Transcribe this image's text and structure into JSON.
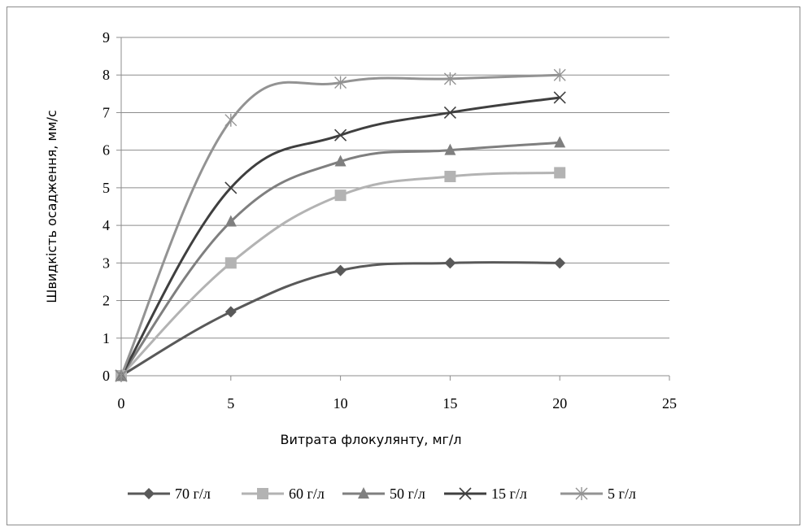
{
  "chart_data": {
    "type": "line",
    "xlabel": "Витрата флокулянту, мг/л",
    "ylabel": "Швидкість осадження, мм/с",
    "xlim": [
      0,
      25
    ],
    "ylim": [
      0,
      9
    ],
    "x_ticks": [
      0,
      5,
      10,
      15,
      20,
      25
    ],
    "y_ticks": [
      0,
      1,
      2,
      3,
      4,
      5,
      6,
      7,
      8,
      9
    ],
    "grid": "horizontal",
    "legend_position": "bottom",
    "x": [
      0,
      5,
      10,
      15,
      20
    ],
    "series": [
      {
        "name": "70 г/л",
        "values": [
          0,
          1.7,
          2.8,
          3.0,
          3.0
        ],
        "color": "#595959",
        "marker": "diamond"
      },
      {
        "name": "60 г/л",
        "values": [
          0,
          3.0,
          4.8,
          5.3,
          5.4
        ],
        "color": "#b3b3b3",
        "marker": "square"
      },
      {
        "name": "50 г/л",
        "values": [
          0,
          4.1,
          5.7,
          6.0,
          6.2
        ],
        "color": "#7f7f7f",
        "marker": "triangle"
      },
      {
        "name": "15 г/л",
        "values": [
          0,
          5.0,
          6.4,
          7.0,
          7.4
        ],
        "color": "#3f3f3f",
        "marker": "x"
      },
      {
        "name": "5 г/л",
        "values": [
          0,
          6.8,
          7.8,
          7.9,
          8.0
        ],
        "color": "#939393",
        "marker": "star"
      }
    ]
  }
}
